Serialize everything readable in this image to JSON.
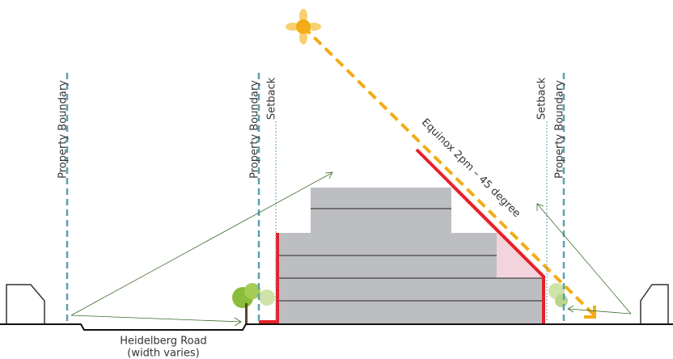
{
  "labels": {
    "property_boundary_left": "Property Boundary",
    "property_boundary_mid": "Property Boundary",
    "property_boundary_right": "Property Boundary",
    "setback_left": "Setback",
    "setback_right": "Setback",
    "sun_angle": "Equinox 2pm – 45 degree",
    "road_name": "Heidelberg Road",
    "road_note": "(width varies)"
  }
}
